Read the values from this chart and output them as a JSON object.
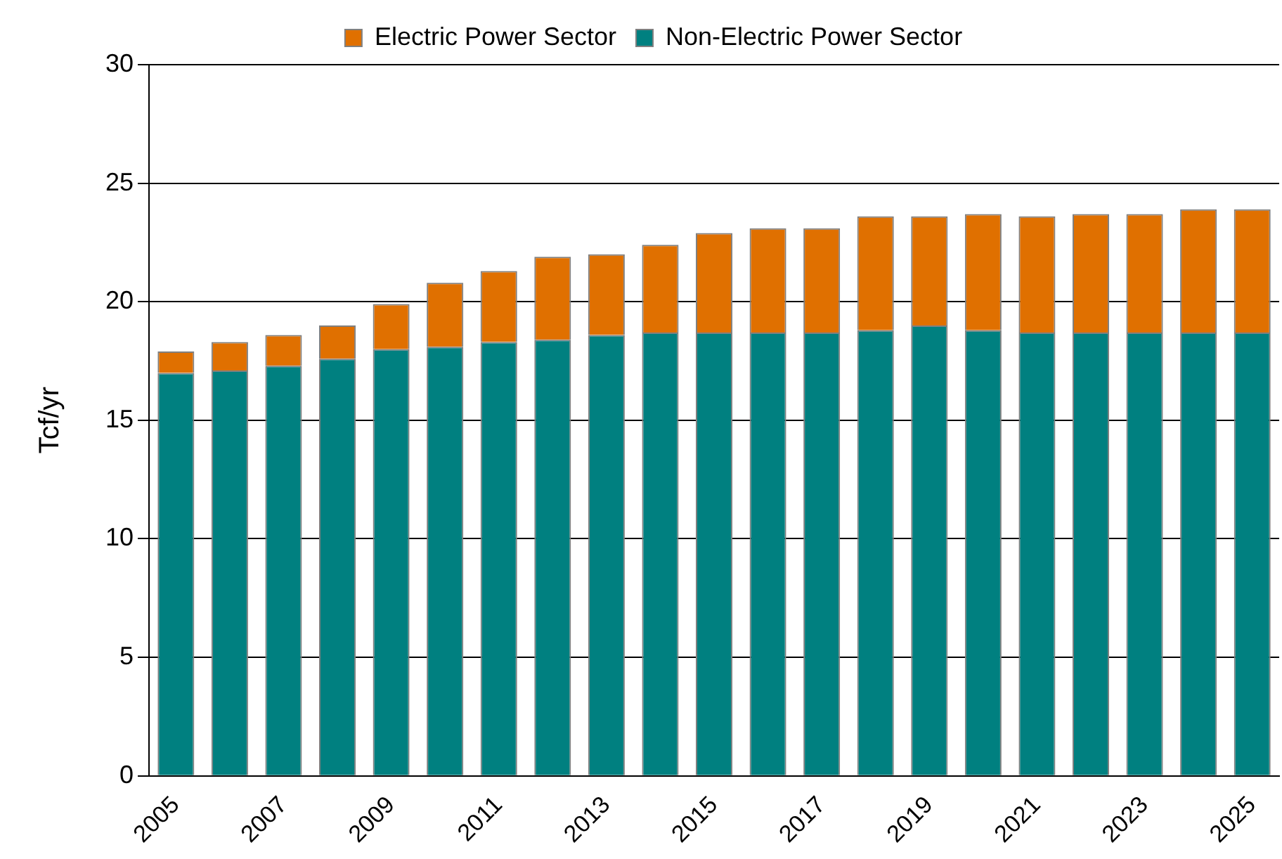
{
  "chart_data": {
    "type": "bar",
    "stacked": true,
    "ylabel": "Tcf/yr",
    "categories": [
      "2005",
      null,
      "2007",
      null,
      "2009",
      null,
      "2011",
      null,
      "2013",
      null,
      "2015",
      null,
      "2017",
      null,
      "2019",
      null,
      "2021",
      null,
      "2023",
      null,
      "2025"
    ],
    "series": [
      {
        "name": "Non-Electric Power Sector",
        "color": "#008080",
        "values": [
          17.0,
          17.1,
          17.3,
          17.6,
          18.0,
          18.1,
          18.3,
          18.4,
          18.6,
          18.7,
          18.7,
          18.7,
          18.7,
          18.8,
          19.0,
          18.8,
          18.7,
          18.7,
          18.7,
          18.7,
          18.7
        ]
      },
      {
        "name": "Electric Power Sector",
        "color": "#e07000",
        "values": [
          0.9,
          1.2,
          1.3,
          1.4,
          1.9,
          2.7,
          3.0,
          3.5,
          3.4,
          3.7,
          4.2,
          4.4,
          4.4,
          4.8,
          4.6,
          4.9,
          4.9,
          5.0,
          5.0,
          5.2,
          5.2
        ]
      }
    ],
    "ylim": [
      0,
      30
    ],
    "yticks": [
      0,
      5,
      10,
      15,
      20,
      25,
      30
    ],
    "grid": "y",
    "legend": "top"
  }
}
